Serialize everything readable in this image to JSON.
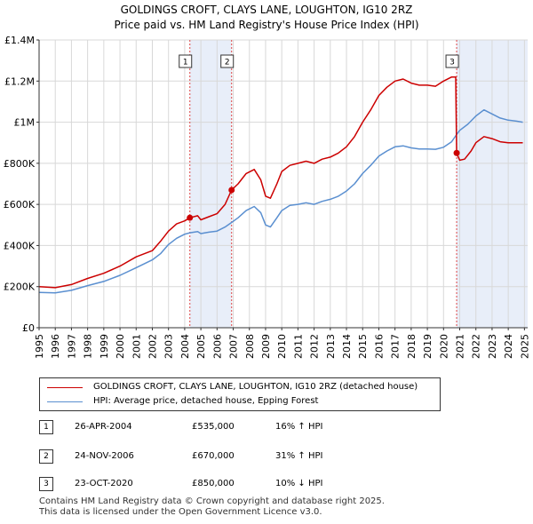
{
  "chart_data": {
    "type": "line",
    "title": "GOLDINGS CROFT, CLAYS LANE, LOUGHTON, IG10 2RZ",
    "subtitle": "Price paid vs. HM Land Registry's House Price Index (HPI)",
    "xlim": [
      1995,
      2025.2
    ],
    "ylim": [
      0,
      1400000
    ],
    "x_ticks": [
      1995,
      1996,
      1997,
      1998,
      1999,
      2000,
      2001,
      2002,
      2003,
      2004,
      2005,
      2006,
      2007,
      2008,
      2009,
      2010,
      2011,
      2012,
      2013,
      2014,
      2015,
      2016,
      2017,
      2018,
      2019,
      2020,
      2021,
      2022,
      2023,
      2024,
      2025
    ],
    "y_ticks": [
      {
        "value": 0,
        "label": "£0"
      },
      {
        "value": 200000,
        "label": "£200K"
      },
      {
        "value": 400000,
        "label": "£400K"
      },
      {
        "value": 600000,
        "label": "£600K"
      },
      {
        "value": 800000,
        "label": "£800K"
      },
      {
        "value": 1000000,
        "label": "£1M"
      },
      {
        "value": 1200000,
        "label": "£1.2M"
      },
      {
        "value": 1400000,
        "label": "£1.4M"
      }
    ],
    "grid": true,
    "shaded_spans": [
      [
        2004.32,
        2006.9
      ],
      [
        2020.81,
        2025.2
      ]
    ],
    "series": [
      {
        "name": "GOLDINGS CROFT, CLAYS LANE, LOUGHTON, IG10 2RZ (detached house)",
        "color": "#cc0000",
        "points": [
          [
            1995,
            200000
          ],
          [
            1996,
            195000
          ],
          [
            1997,
            210000
          ],
          [
            1998,
            240000
          ],
          [
            1999,
            265000
          ],
          [
            2000,
            300000
          ],
          [
            2001,
            345000
          ],
          [
            2002,
            375000
          ],
          [
            2002.5,
            420000
          ],
          [
            2003,
            470000
          ],
          [
            2003.5,
            505000
          ],
          [
            2004,
            520000
          ],
          [
            2004.32,
            535000
          ],
          [
            2004.8,
            545000
          ],
          [
            2005,
            525000
          ],
          [
            2005.5,
            540000
          ],
          [
            2006,
            555000
          ],
          [
            2006.5,
            600000
          ],
          [
            2006.9,
            670000
          ],
          [
            2007.3,
            700000
          ],
          [
            2007.8,
            750000
          ],
          [
            2008.3,
            770000
          ],
          [
            2008.7,
            720000
          ],
          [
            2009,
            640000
          ],
          [
            2009.3,
            630000
          ],
          [
            2009.7,
            700000
          ],
          [
            2010,
            760000
          ],
          [
            2010.5,
            790000
          ],
          [
            2011,
            800000
          ],
          [
            2011.5,
            810000
          ],
          [
            2012,
            800000
          ],
          [
            2012.5,
            820000
          ],
          [
            2013,
            830000
          ],
          [
            2013.5,
            850000
          ],
          [
            2014,
            880000
          ],
          [
            2014.5,
            930000
          ],
          [
            2015,
            1000000
          ],
          [
            2015.5,
            1060000
          ],
          [
            2016,
            1130000
          ],
          [
            2016.5,
            1170000
          ],
          [
            2017,
            1200000
          ],
          [
            2017.5,
            1210000
          ],
          [
            2018,
            1190000
          ],
          [
            2018.5,
            1180000
          ],
          [
            2019,
            1180000
          ],
          [
            2019.5,
            1175000
          ],
          [
            2020,
            1200000
          ],
          [
            2020.5,
            1220000
          ],
          [
            2020.75,
            1220000
          ],
          [
            2020.81,
            850000
          ],
          [
            2021,
            815000
          ],
          [
            2021.3,
            820000
          ],
          [
            2021.7,
            860000
          ],
          [
            2022,
            900000
          ],
          [
            2022.5,
            930000
          ],
          [
            2023,
            920000
          ],
          [
            2023.5,
            905000
          ],
          [
            2024,
            900000
          ],
          [
            2024.5,
            900000
          ],
          [
            2024.9,
            900000
          ]
        ]
      },
      {
        "name": "HPI: Average price, detached house, Epping Forest",
        "color": "#5a8fd0",
        "points": [
          [
            1995,
            172000
          ],
          [
            1996,
            170000
          ],
          [
            1997,
            182000
          ],
          [
            1998,
            205000
          ],
          [
            1999,
            225000
          ],
          [
            2000,
            255000
          ],
          [
            2001,
            292000
          ],
          [
            2002,
            330000
          ],
          [
            2002.5,
            360000
          ],
          [
            2003,
            405000
          ],
          [
            2003.5,
            435000
          ],
          [
            2004,
            455000
          ],
          [
            2004.32,
            462000
          ],
          [
            2004.8,
            468000
          ],
          [
            2005,
            458000
          ],
          [
            2005.5,
            465000
          ],
          [
            2006,
            470000
          ],
          [
            2006.5,
            490000
          ],
          [
            2006.9,
            512000
          ],
          [
            2007.3,
            535000
          ],
          [
            2007.8,
            570000
          ],
          [
            2008.3,
            590000
          ],
          [
            2008.7,
            560000
          ],
          [
            2009,
            500000
          ],
          [
            2009.3,
            490000
          ],
          [
            2009.7,
            535000
          ],
          [
            2010,
            570000
          ],
          [
            2010.5,
            595000
          ],
          [
            2011,
            600000
          ],
          [
            2011.5,
            608000
          ],
          [
            2012,
            600000
          ],
          [
            2012.5,
            615000
          ],
          [
            2013,
            625000
          ],
          [
            2013.5,
            640000
          ],
          [
            2014,
            665000
          ],
          [
            2014.5,
            700000
          ],
          [
            2015,
            750000
          ],
          [
            2015.5,
            790000
          ],
          [
            2016,
            835000
          ],
          [
            2016.5,
            860000
          ],
          [
            2017,
            880000
          ],
          [
            2017.5,
            885000
          ],
          [
            2018,
            875000
          ],
          [
            2018.5,
            870000
          ],
          [
            2019,
            870000
          ],
          [
            2019.5,
            868000
          ],
          [
            2020,
            878000
          ],
          [
            2020.5,
            905000
          ],
          [
            2020.81,
            940000
          ],
          [
            2021,
            960000
          ],
          [
            2021.5,
            990000
          ],
          [
            2022,
            1030000
          ],
          [
            2022.5,
            1060000
          ],
          [
            2023,
            1040000
          ],
          [
            2023.5,
            1020000
          ],
          [
            2024,
            1010000
          ],
          [
            2024.5,
            1005000
          ],
          [
            2024.9,
            1000000
          ]
        ]
      }
    ],
    "sales": [
      {
        "marker": "1",
        "x": 2004.32,
        "price": 535000,
        "date": "26-APR-2004",
        "price_label": "£535,000",
        "hpi_label": "16% ↑ HPI"
      },
      {
        "marker": "2",
        "x": 2006.9,
        "price": 670000,
        "date": "24-NOV-2006",
        "price_label": "£670,000",
        "hpi_label": "31% ↑ HPI"
      },
      {
        "marker": "3",
        "x": 2020.81,
        "price": 850000,
        "date": "23-OCT-2020",
        "price_label": "£850,000",
        "hpi_label": "10% ↓ HPI"
      }
    ]
  },
  "legend": {
    "property_label": "GOLDINGS CROFT, CLAYS LANE, LOUGHTON, IG10 2RZ (detached house)",
    "hpi_label": "HPI: Average price, detached house, Epping Forest"
  },
  "footer": {
    "line1": "Contains HM Land Registry data © Crown copyright and database right 2025.",
    "line2": "This data is licensed under the Open Government Licence v3.0."
  }
}
